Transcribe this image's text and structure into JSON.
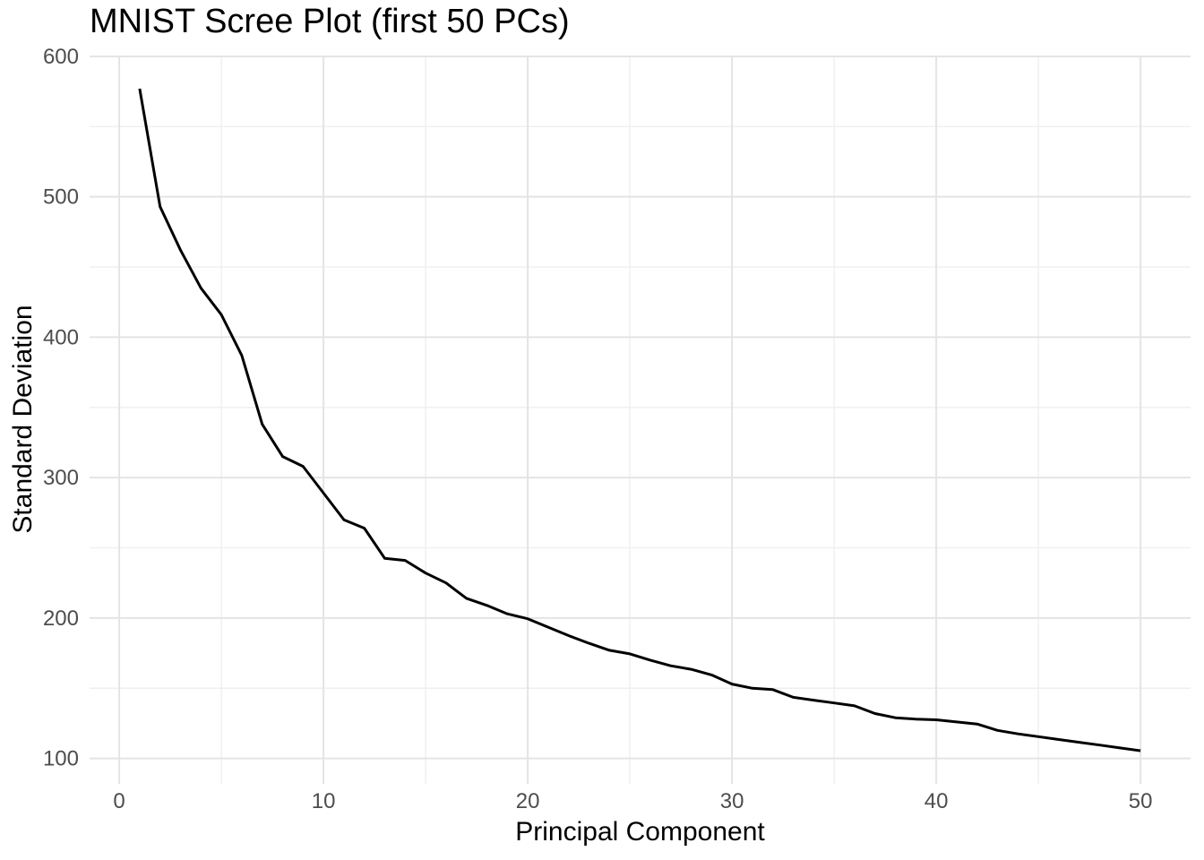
{
  "chart_data": {
    "type": "line",
    "title": "MNIST Scree Plot (first 50 PCs)",
    "xlabel": "Principal Component",
    "ylabel": "Standard Deviation",
    "x": [
      1,
      2,
      3,
      4,
      5,
      6,
      7,
      8,
      9,
      10,
      11,
      12,
      13,
      14,
      15,
      16,
      17,
      18,
      19,
      20,
      21,
      22,
      23,
      24,
      25,
      26,
      27,
      28,
      29,
      30,
      31,
      32,
      33,
      34,
      35,
      36,
      37,
      38,
      39,
      40,
      41,
      42,
      43,
      44,
      45,
      46,
      47,
      48,
      49,
      50
    ],
    "series": [
      {
        "name": "standard-deviation",
        "color": "#000000",
        "values": [
          577,
          493,
          462,
          435,
          416,
          387,
          338,
          315,
          308,
          289,
          270,
          264,
          242.5,
          241,
          232,
          225,
          214,
          209,
          203,
          199.5,
          193.5,
          187.5,
          182,
          177,
          174.5,
          170,
          166,
          163.5,
          159.5,
          153,
          150,
          149,
          143.5,
          141.5,
          139.5,
          137.5,
          132,
          129,
          128,
          127.5,
          126,
          124.5,
          120,
          117.5,
          115.5,
          113.5,
          111.5,
          109.5,
          107.5,
          105.5
        ]
      }
    ],
    "x_ticks": [
      0,
      10,
      20,
      30,
      40,
      50
    ],
    "y_ticks": [
      100,
      200,
      300,
      400,
      500,
      600
    ],
    "x_minor_ticks": [
      5,
      15,
      25,
      35,
      45
    ],
    "y_minor_ticks": [
      150,
      250,
      350,
      450,
      550
    ],
    "xlim": [
      -1.45,
      52.45
    ],
    "ylim": [
      81.9,
      600.6
    ],
    "legend": "none",
    "grid": {
      "major_color": "#E4E4E4",
      "minor_color": "#EFEFEF",
      "major_width": 2,
      "minor_width": 1.4
    },
    "tick_label_color": "#4D4D4D",
    "line_width": 3
  }
}
